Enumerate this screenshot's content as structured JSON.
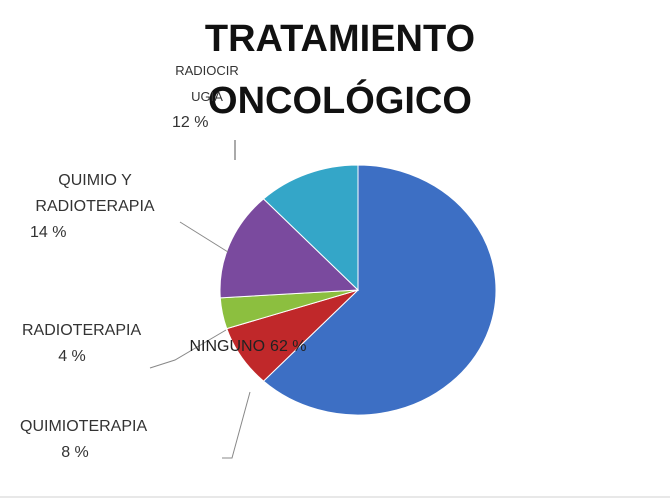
{
  "chart_data": {
    "type": "pie",
    "title": "TRATAMIENTO ONCOLÓGICO",
    "categories": [
      "NINGUNO",
      "QUIMIOTERAPIA",
      "RADIOTERAPIA",
      "QUIMIO Y RADIOTERAPIA",
      "RADIOCIRUGIA"
    ],
    "values": [
      62,
      8,
      4,
      14,
      12
    ],
    "value_labels": [
      "62 %",
      "8 %",
      "4 %",
      "14 %",
      "12 %"
    ],
    "colors": [
      "#3d6fc4",
      "#c0282a",
      "#8cbf3f",
      "#7a4a9e",
      "#34a6c8"
    ]
  }
}
